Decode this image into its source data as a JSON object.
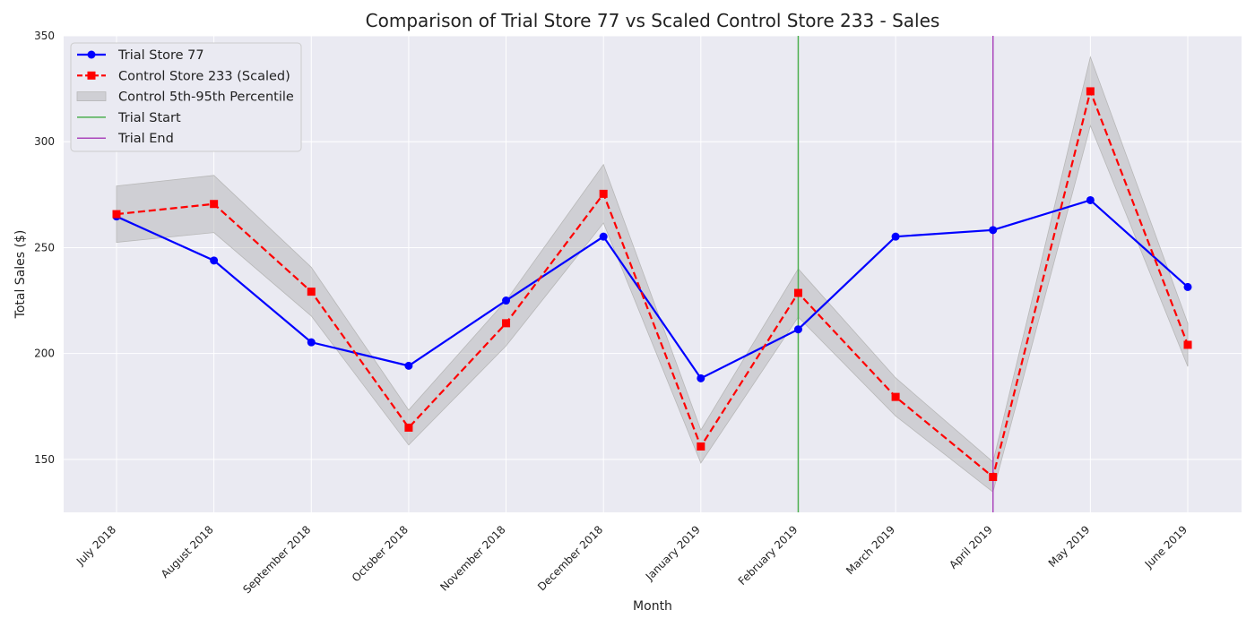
{
  "chart_data": {
    "type": "line",
    "title": "Comparison of Trial Store 77 vs Scaled Control Store 233 - Sales",
    "xlabel": "Month",
    "ylabel": "Total Sales ($)",
    "categories": [
      "July 2018",
      "August 2018",
      "September 2018",
      "October 2018",
      "November 2018",
      "December 2018",
      "January 2019",
      "February 2019",
      "March 2019",
      "April 2019",
      "May 2019",
      "June 2019"
    ],
    "ylim": [
      125,
      350
    ],
    "yticks": [
      150,
      200,
      250,
      300,
      350
    ],
    "grid": true,
    "legend_position": "top-left",
    "series": [
      {
        "name": "Trial Store 77",
        "color": "#0000ff",
        "style": "solid",
        "marker": "circle",
        "values": [
          264.7,
          243.9,
          205.3,
          194.2,
          225.0,
          255.2,
          188.3,
          211.4,
          255.2,
          258.3,
          272.4,
          231.4
        ]
      },
      {
        "name": "Control Store 233 (Scaled)",
        "color": "#ff0000",
        "style": "dashed",
        "marker": "square",
        "values": [
          265.8,
          270.6,
          229.2,
          165.0,
          214.3,
          275.4,
          156.1,
          228.6,
          179.5,
          141.7,
          323.8,
          204.1
        ]
      }
    ],
    "band": {
      "name": "Control 5th-95th Percentile",
      "color": "#b0b0b0",
      "lower": [
        252.5,
        257.1,
        217.7,
        156.8,
        203.6,
        261.6,
        148.3,
        217.2,
        170.5,
        134.6,
        307.6,
        193.9
      ],
      "upper": [
        279.1,
        284.1,
        240.7,
        173.3,
        225.0,
        289.2,
        163.9,
        240.0,
        188.5,
        148.8,
        340.0,
        214.3
      ]
    },
    "vlines": [
      {
        "name": "Trial Start",
        "x": "February 2019",
        "color": "#4caf50"
      },
      {
        "name": "Trial End",
        "x": "April 2019",
        "color": "#ab47bc"
      }
    ]
  }
}
